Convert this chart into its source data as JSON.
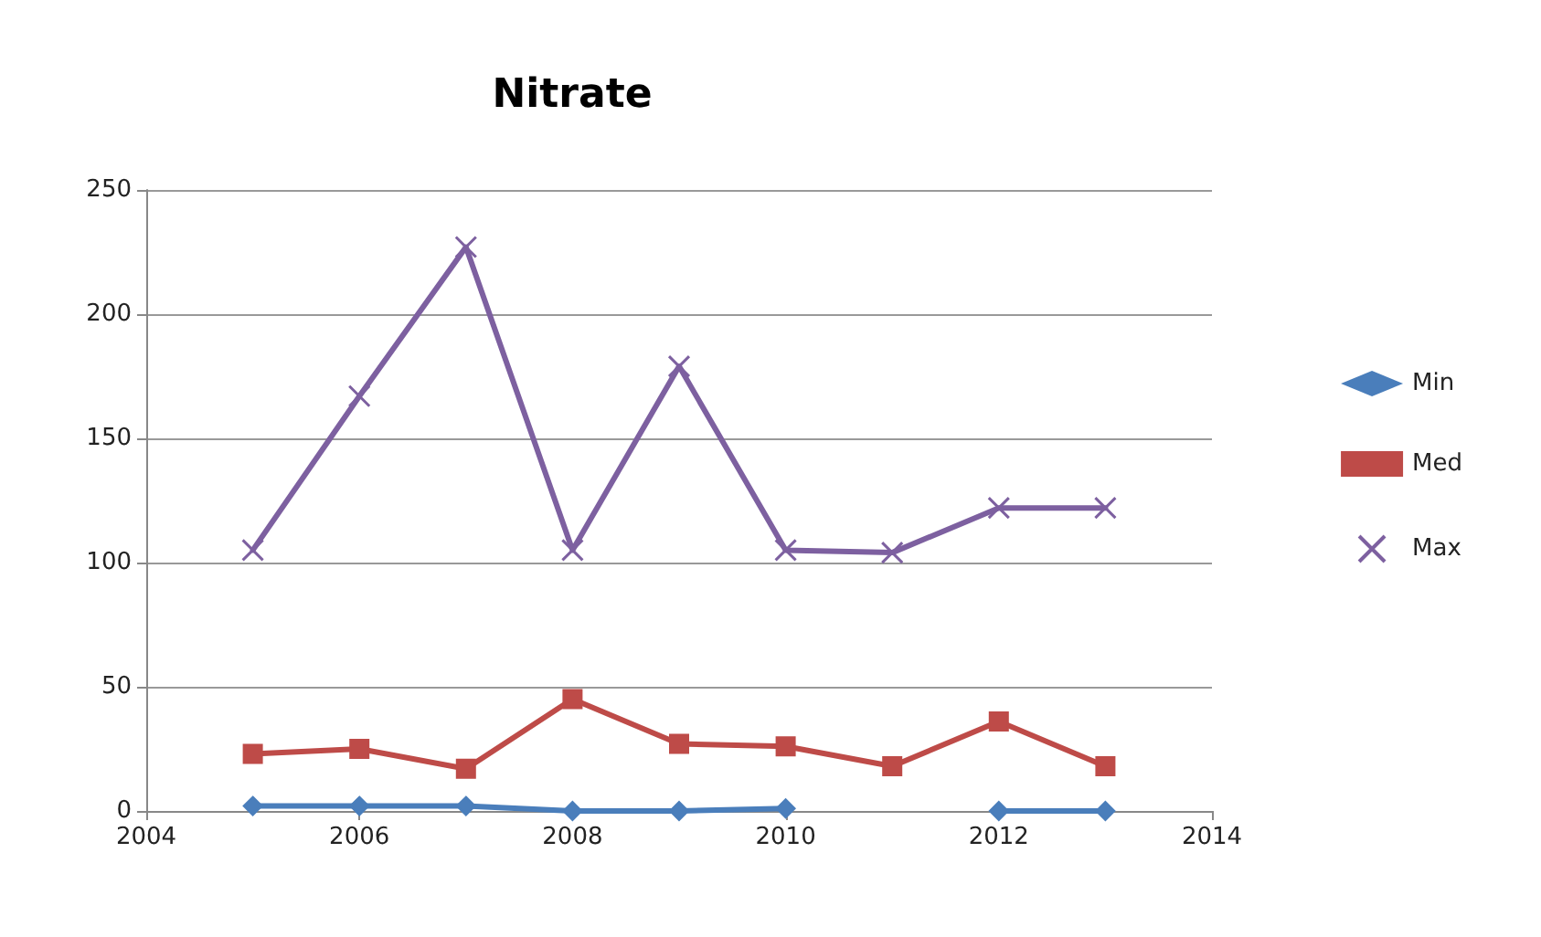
{
  "chart_data": {
    "type": "line",
    "title": "Nitrate",
    "x": [
      2005,
      2006,
      2007,
      2008,
      2009,
      2010,
      2011,
      2012,
      2013
    ],
    "series": [
      {
        "name": "Min",
        "color": "#4a7ebb",
        "marker": "diamond",
        "values": [
          2,
          2,
          2,
          0,
          0,
          1,
          null,
          0,
          0
        ]
      },
      {
        "name": "Med",
        "color": "#be4b48",
        "marker": "square",
        "values": [
          23,
          25,
          17,
          45,
          27,
          26,
          18,
          36,
          18
        ]
      },
      {
        "name": "Max",
        "color": "#7d60a0",
        "marker": "cross",
        "values": [
          105,
          167,
          227,
          105,
          179,
          105,
          104,
          122,
          122
        ]
      }
    ],
    "xlim": [
      2004,
      2014
    ],
    "xticks": [
      2004,
      2006,
      2008,
      2010,
      2012,
      2014
    ],
    "ylim": [
      0,
      250
    ],
    "yticks": [
      0,
      50,
      100,
      150,
      200,
      250
    ],
    "grid": "y",
    "legend": "right"
  }
}
